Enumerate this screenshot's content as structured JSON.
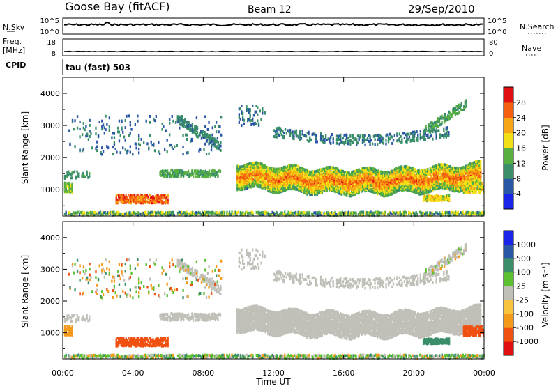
{
  "header": {
    "site": "Goose Bay (fitACF)",
    "beam": "Beam 12",
    "date": "29/Sep/2010"
  },
  "strips": {
    "nsky_label": "N.Sky",
    "nsky_top": "10^5",
    "nsky_bottom": "10^0",
    "nsearch_label": "N.Search",
    "nsearch_top": "10^5",
    "nsearch_bottom": "10^0",
    "freq_label_1": "Freq.",
    "freq_label_2": "[MHz]",
    "freq_top": "18",
    "freq_bottom": "8",
    "nave_label": "Nave",
    "nave_top": "80",
    "nave_bottom": "0",
    "cpid_label": "CPID",
    "cpid_value": "tau (fast) 503"
  },
  "colors": {
    "power_bar": [
      "#1a24e8",
      "#2a56a6",
      "#3a8f6a",
      "#58b040",
      "#f3e014",
      "#f6a514",
      "#f46010",
      "#e01010"
    ],
    "velocity_bar": [
      "#e01010",
      "#f05010",
      "#f49a1a",
      "#f8c440",
      "#c0c0b8",
      "#5cc030",
      "#3a8f6a",
      "#2a56a6",
      "#1a24e8"
    ]
  },
  "chart_data": [
    {
      "type": "heatmap",
      "name": "power",
      "xlabel": "",
      "ylabel": "Slant Range [km]",
      "xlim": [
        "00:00",
        "24:00"
      ],
      "ylim": [
        180,
        4500
      ],
      "colorbar": {
        "label": "Power [dB]",
        "ticks": [
          "4",
          "8",
          "12",
          "16",
          "20",
          "24",
          "28"
        ],
        "range": [
          0,
          30
        ]
      },
      "features": [
        {
          "t": [
            9.9,
            23.8
          ],
          "range": [
            1100,
            1900
          ],
          "value": 22
        },
        {
          "t": [
            0.0,
            0.5
          ],
          "range": [
            900,
            1200
          ],
          "value": 12
        },
        {
          "t": [
            3.0,
            6.0
          ],
          "range": [
            550,
            850
          ],
          "value": 20
        },
        {
          "t": [
            6.5,
            9.0
          ],
          "range": [
            2200,
            3100
          ],
          "value": 8
        },
        {
          "t": [
            12.0,
            22.0
          ],
          "range": [
            2300,
            3200
          ],
          "value": 8
        },
        {
          "t": [
            0.0,
            24.0
          ],
          "range": [
            180,
            300
          ],
          "value": 10
        }
      ]
    },
    {
      "type": "heatmap",
      "name": "velocity",
      "xlabel": "Time UT",
      "ylabel": "Slant Range [km]",
      "xlim": [
        "00:00",
        "24:00"
      ],
      "ylim": [
        180,
        4500
      ],
      "xticks": [
        "00:00",
        "04:00",
        "08:00",
        "12:00",
        "16:00",
        "20:00",
        "00:00"
      ],
      "yticks": [
        "1000",
        "2000",
        "3000",
        "4000"
      ],
      "colorbar": {
        "label": "Velocity [m s⁻¹]",
        "ticks": [
          "1000",
          "500",
          "100",
          "25",
          "-25",
          "-100",
          "-500",
          "-1000"
        ],
        "range": [
          -1000,
          1000
        ]
      },
      "features": [
        {
          "t": [
            9.9,
            23.8
          ],
          "range": [
            1100,
            1900
          ],
          "value": 0
        },
        {
          "t": [
            3.0,
            6.0
          ],
          "range": [
            550,
            850
          ],
          "value": -150
        },
        {
          "t": [
            20.5,
            22.0
          ],
          "range": [
            650,
            800
          ],
          "value": 150
        },
        {
          "t": [
            0.0,
            24.0
          ],
          "range": [
            180,
            300
          ],
          "value": 60
        }
      ]
    }
  ]
}
